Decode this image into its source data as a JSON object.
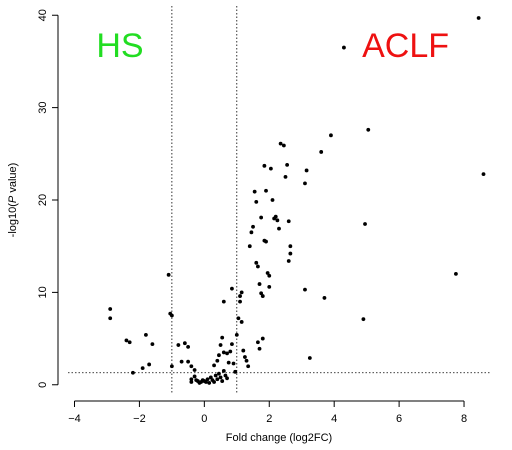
{
  "chart_data": {
    "type": "scatter",
    "xlabel": "Fold change (log2FC)",
    "ylabel_prefix": "-log10(",
    "ylabel_italic": "P",
    "ylabel_suffix": " value)",
    "xlim": [
      -4.2,
      8.8
    ],
    "ylim": [
      -1,
      41
    ],
    "xticks": [
      -4,
      -2,
      0,
      2,
      4,
      6,
      8
    ],
    "yticks": [
      0,
      10,
      20,
      30,
      40
    ],
    "grid": false,
    "threshold_lines": {
      "x": [
        -1,
        1
      ],
      "y": [
        1.3
      ]
    },
    "annotations": [
      {
        "text": "HS",
        "color": "#22dd22",
        "x": -2.6,
        "y": 35.5
      },
      {
        "text": "ACLF",
        "color": "#ee1111",
        "x": 6.2,
        "y": 35.5
      }
    ],
    "points": [
      [
        -2.9,
        8.2
      ],
      [
        -2.9,
        7.2
      ],
      [
        -2.4,
        4.8
      ],
      [
        -2.3,
        4.6
      ],
      [
        -2.2,
        1.3
      ],
      [
        -1.9,
        1.8
      ],
      [
        -1.8,
        5.4
      ],
      [
        -1.6,
        4.4
      ],
      [
        -1.7,
        2.2
      ],
      [
        -1.1,
        11.9
      ],
      [
        -1.05,
        7.7
      ],
      [
        -1.0,
        7.5
      ],
      [
        -1.0,
        2.0
      ],
      [
        -0.8,
        4.3
      ],
      [
        -0.6,
        4.5
      ],
      [
        -0.5,
        4.1
      ],
      [
        -0.7,
        2.5
      ],
      [
        -0.5,
        2.5
      ],
      [
        -0.4,
        2.0
      ],
      [
        -0.3,
        1.6
      ],
      [
        -0.4,
        0.3
      ],
      [
        -0.4,
        0.6
      ],
      [
        -0.3,
        0.9
      ],
      [
        -0.25,
        0.5
      ],
      [
        -0.2,
        0.4
      ],
      [
        -0.15,
        0.2
      ],
      [
        -0.1,
        0.3
      ],
      [
        -0.05,
        0.5
      ],
      [
        0.0,
        0.4
      ],
      [
        0.05,
        0.3
      ],
      [
        0.1,
        0.6
      ],
      [
        0.15,
        0.2
      ],
      [
        0.2,
        0.8
      ],
      [
        0.25,
        0.5
      ],
      [
        0.3,
        0.3
      ],
      [
        0.35,
        1.0
      ],
      [
        0.4,
        0.6
      ],
      [
        0.45,
        1.2
      ],
      [
        0.5,
        0.8
      ],
      [
        0.55,
        0.4
      ],
      [
        0.6,
        1.5
      ],
      [
        0.65,
        1.0
      ],
      [
        0.7,
        0.7
      ],
      [
        0.3,
        2.1
      ],
      [
        0.4,
        2.6
      ],
      [
        0.45,
        3.2
      ],
      [
        0.5,
        4.3
      ],
      [
        0.55,
        5.1
      ],
      [
        0.6,
        3.5
      ],
      [
        0.7,
        3.4
      ],
      [
        0.75,
        2.4
      ],
      [
        0.8,
        3.6
      ],
      [
        0.85,
        4.4
      ],
      [
        0.9,
        2.3
      ],
      [
        0.95,
        1.4
      ],
      [
        0.6,
        9.0
      ],
      [
        0.85,
        10.4
      ],
      [
        1.0,
        5.4
      ],
      [
        1.05,
        7.2
      ],
      [
        1.1,
        9.0
      ],
      [
        1.1,
        9.6
      ],
      [
        1.15,
        10.0
      ],
      [
        1.15,
        6.8
      ],
      [
        1.2,
        3.7
      ],
      [
        1.25,
        3.0
      ],
      [
        1.3,
        2.6
      ],
      [
        1.35,
        2.0
      ],
      [
        1.4,
        15.0
      ],
      [
        1.45,
        16.5
      ],
      [
        1.5,
        17.1
      ],
      [
        1.55,
        20.9
      ],
      [
        1.6,
        19.8
      ],
      [
        1.6,
        13.2
      ],
      [
        1.65,
        12.8
      ],
      [
        1.7,
        10.9
      ],
      [
        1.75,
        9.9
      ],
      [
        1.8,
        9.6
      ],
      [
        1.8,
        5.0
      ],
      [
        1.65,
        4.6
      ],
      [
        1.7,
        3.9
      ],
      [
        1.75,
        18.1
      ],
      [
        1.85,
        15.6
      ],
      [
        1.85,
        23.7
      ],
      [
        1.9,
        21.0
      ],
      [
        1.9,
        15.5
      ],
      [
        1.95,
        12.1
      ],
      [
        2.0,
        11.8
      ],
      [
        2.0,
        10.6
      ],
      [
        2.05,
        23.4
      ],
      [
        2.1,
        20.0
      ],
      [
        2.15,
        18.0
      ],
      [
        2.2,
        18.2
      ],
      [
        2.25,
        17.8
      ],
      [
        2.3,
        16.9
      ],
      [
        2.35,
        26.1
      ],
      [
        2.45,
        25.9
      ],
      [
        2.5,
        22.5
      ],
      [
        2.55,
        23.8
      ],
      [
        2.6,
        17.7
      ],
      [
        2.6,
        13.4
      ],
      [
        2.65,
        14.2
      ],
      [
        2.65,
        15.0
      ],
      [
        3.1,
        21.8
      ],
      [
        3.15,
        23.2
      ],
      [
        3.1,
        10.3
      ],
      [
        3.25,
        2.9
      ],
      [
        3.6,
        25.2
      ],
      [
        3.7,
        9.4
      ],
      [
        3.9,
        27.0
      ],
      [
        4.3,
        36.5
      ],
      [
        4.9,
        7.1
      ],
      [
        4.95,
        17.4
      ],
      [
        5.05,
        27.6
      ],
      [
        7.75,
        12.0
      ],
      [
        8.45,
        39.7
      ],
      [
        8.6,
        22.8
      ]
    ]
  }
}
